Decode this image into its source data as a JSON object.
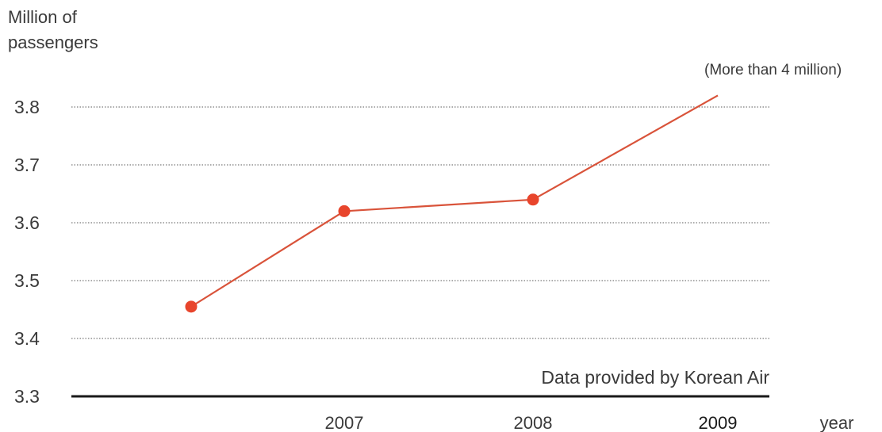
{
  "chart_data": {
    "type": "line",
    "ylabel_line1": "Million of",
    "ylabel_line2": "passengers",
    "xlabel": "year",
    "ylim": [
      3.3,
      3.8
    ],
    "yticks": [
      "3.8",
      "3.7",
      "3.6",
      "3.5",
      "3.4",
      "3.3"
    ],
    "xtick_labels": [
      "2007",
      "2008",
      "2009"
    ],
    "grid": true,
    "series": [
      {
        "x": [
          2006,
          2007,
          2008,
          2009
        ],
        "y": [
          3.455,
          3.62,
          3.64,
          3.82
        ],
        "markers": [
          true,
          true,
          true,
          false
        ]
      }
    ],
    "annotation": "(More than 4 million)",
    "source_note": "Data provided by Korean Air",
    "line_color": "#d9533a",
    "marker_color": "#e8452c"
  }
}
